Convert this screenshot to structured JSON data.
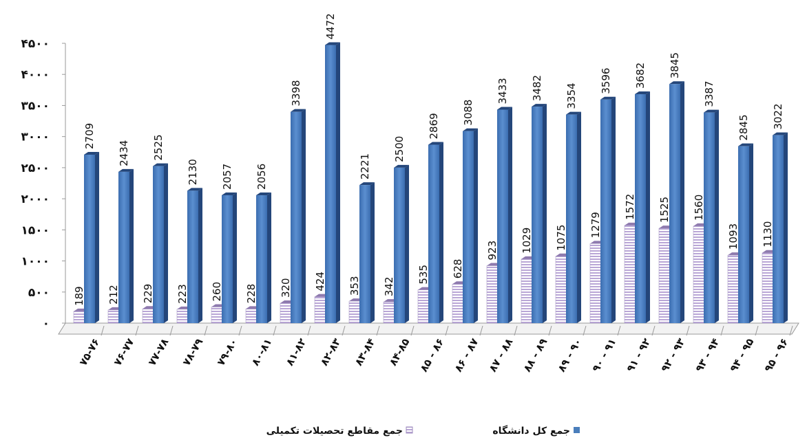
{
  "chart_data": {
    "type": "bar",
    "categories": [
      "۷۵-۷۶",
      "۷۶-۷۷",
      "۷۷-۷۸",
      "۷۸-۷۹",
      "۷۹-۸۰",
      "۸۰-۸۱",
      "۸۱-۸۲",
      "۸۲-۸۳",
      "۸۳-۸۴",
      "۸۴-۸۵",
      "۸۵ - ۸۶",
      "۸۶ - ۸۷",
      "۸۷ - ۸۸",
      "۸۸ - ۸۹",
      "۸۹ - ۹۰",
      "۹۰ - ۹۱",
      "۹۱ - ۹۲",
      "۹۲ - ۹۳",
      "۹۳ - ۹۴",
      "۹۴ - ۹۵",
      "۹۵ - ۹۶"
    ],
    "series": [
      {
        "name": "جمع مقاطع تحصیلات تکمیلی",
        "color": "#c9b8e0",
        "values": [
          189,
          212,
          229,
          223,
          260,
          228,
          320,
          424,
          353,
          342,
          535,
          628,
          923,
          1029,
          1075,
          1279,
          1572,
          1525,
          1560,
          1093,
          1130
        ]
      },
      {
        "name": "جمع کل دانشگاه",
        "color": "#4a7ebb",
        "values": [
          2709,
          2434,
          2525,
          2130,
          2057,
          2056,
          3398,
          4472,
          2221,
          2500,
          2869,
          3088,
          3433,
          3482,
          3354,
          3596,
          3682,
          3845,
          3387,
          2845,
          3022
        ]
      }
    ],
    "ylim": [
      0,
      4500
    ],
    "yticks": [
      {
        "value": 0,
        "label": "۰"
      },
      {
        "value": 500,
        "label": "۵۰۰"
      },
      {
        "value": 1000,
        "label": "۱۰۰۰"
      },
      {
        "value": 1500,
        "label": "۱۵۰۰"
      },
      {
        "value": 2000,
        "label": "۲۰۰۰"
      },
      {
        "value": 2500,
        "label": "۲۵۰۰"
      },
      {
        "value": 3000,
        "label": "۳۰۰۰"
      },
      {
        "value": 3500,
        "label": "۳۵۰۰"
      },
      {
        "value": 4000,
        "label": "۴۰۰۰"
      },
      {
        "value": 4500,
        "label": "۴۵۰۰"
      }
    ],
    "grid": false,
    "legend": "bottom"
  }
}
